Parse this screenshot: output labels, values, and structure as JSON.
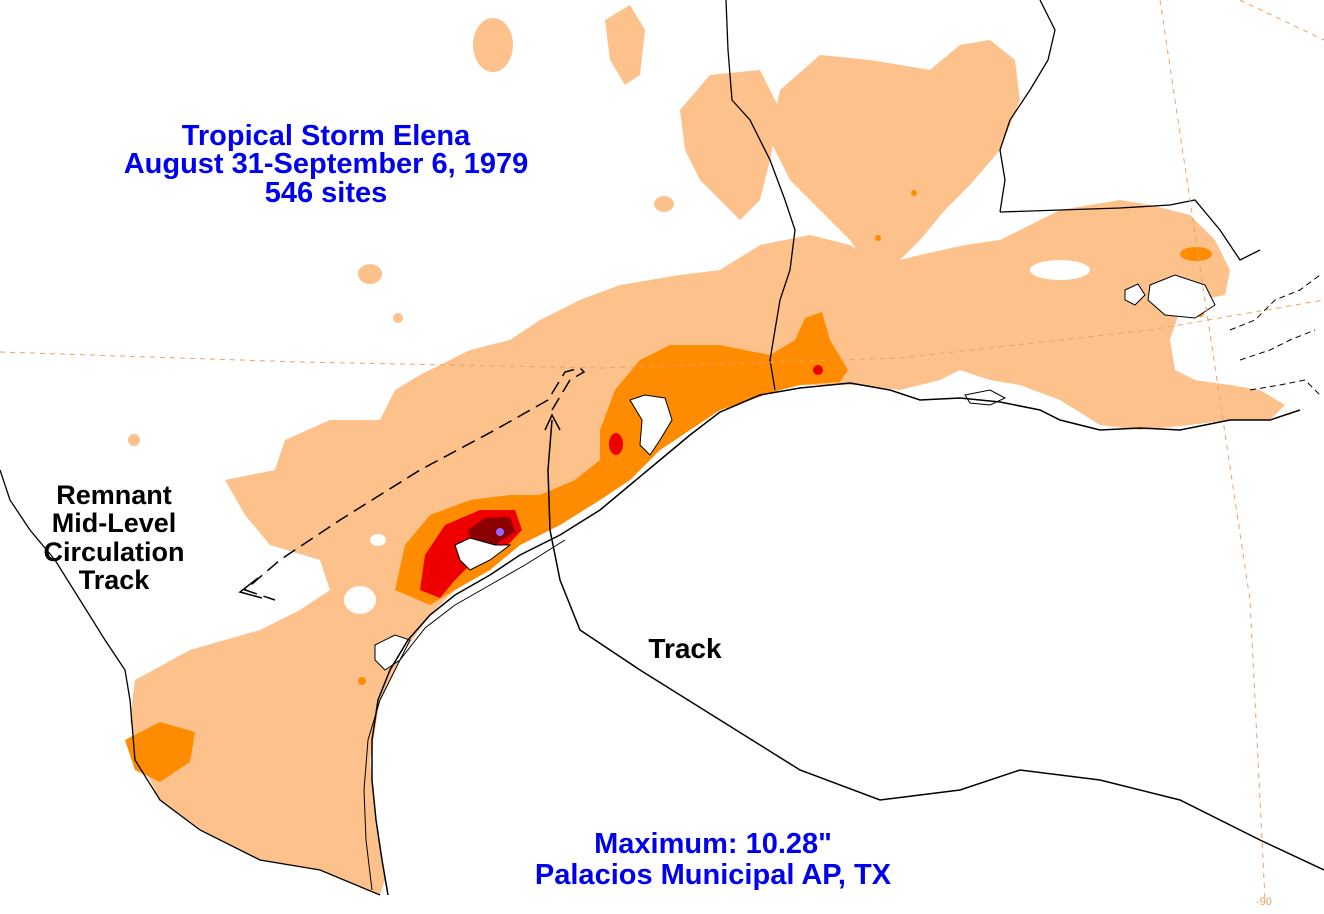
{
  "title": {
    "line1": "Tropical Storm Elena",
    "line2": "August 31-September 6, 1979",
    "line3": "546 sites"
  },
  "labels": {
    "remnant_line1": "Remnant",
    "remnant_line2": "Mid-Level",
    "remnant_line3": "Circulation",
    "remnant_line4": "Track",
    "track": "Track"
  },
  "maximum": {
    "line1": "Maximum:  10.28\"",
    "line2": "Palacios Municipal AP, TX"
  },
  "graticule": {
    "lon_label": "-90"
  },
  "colors": {
    "title_text": "#0000ee",
    "label_text": "#000000",
    "rain_light": "#fdc18c",
    "rain_medium": "#ff8c00",
    "rain_heavy": "#ee0000",
    "rain_extreme": "#8b0000",
    "max_point": "#9966ff",
    "graticule": "#f0a060",
    "borders": "#000000"
  }
}
